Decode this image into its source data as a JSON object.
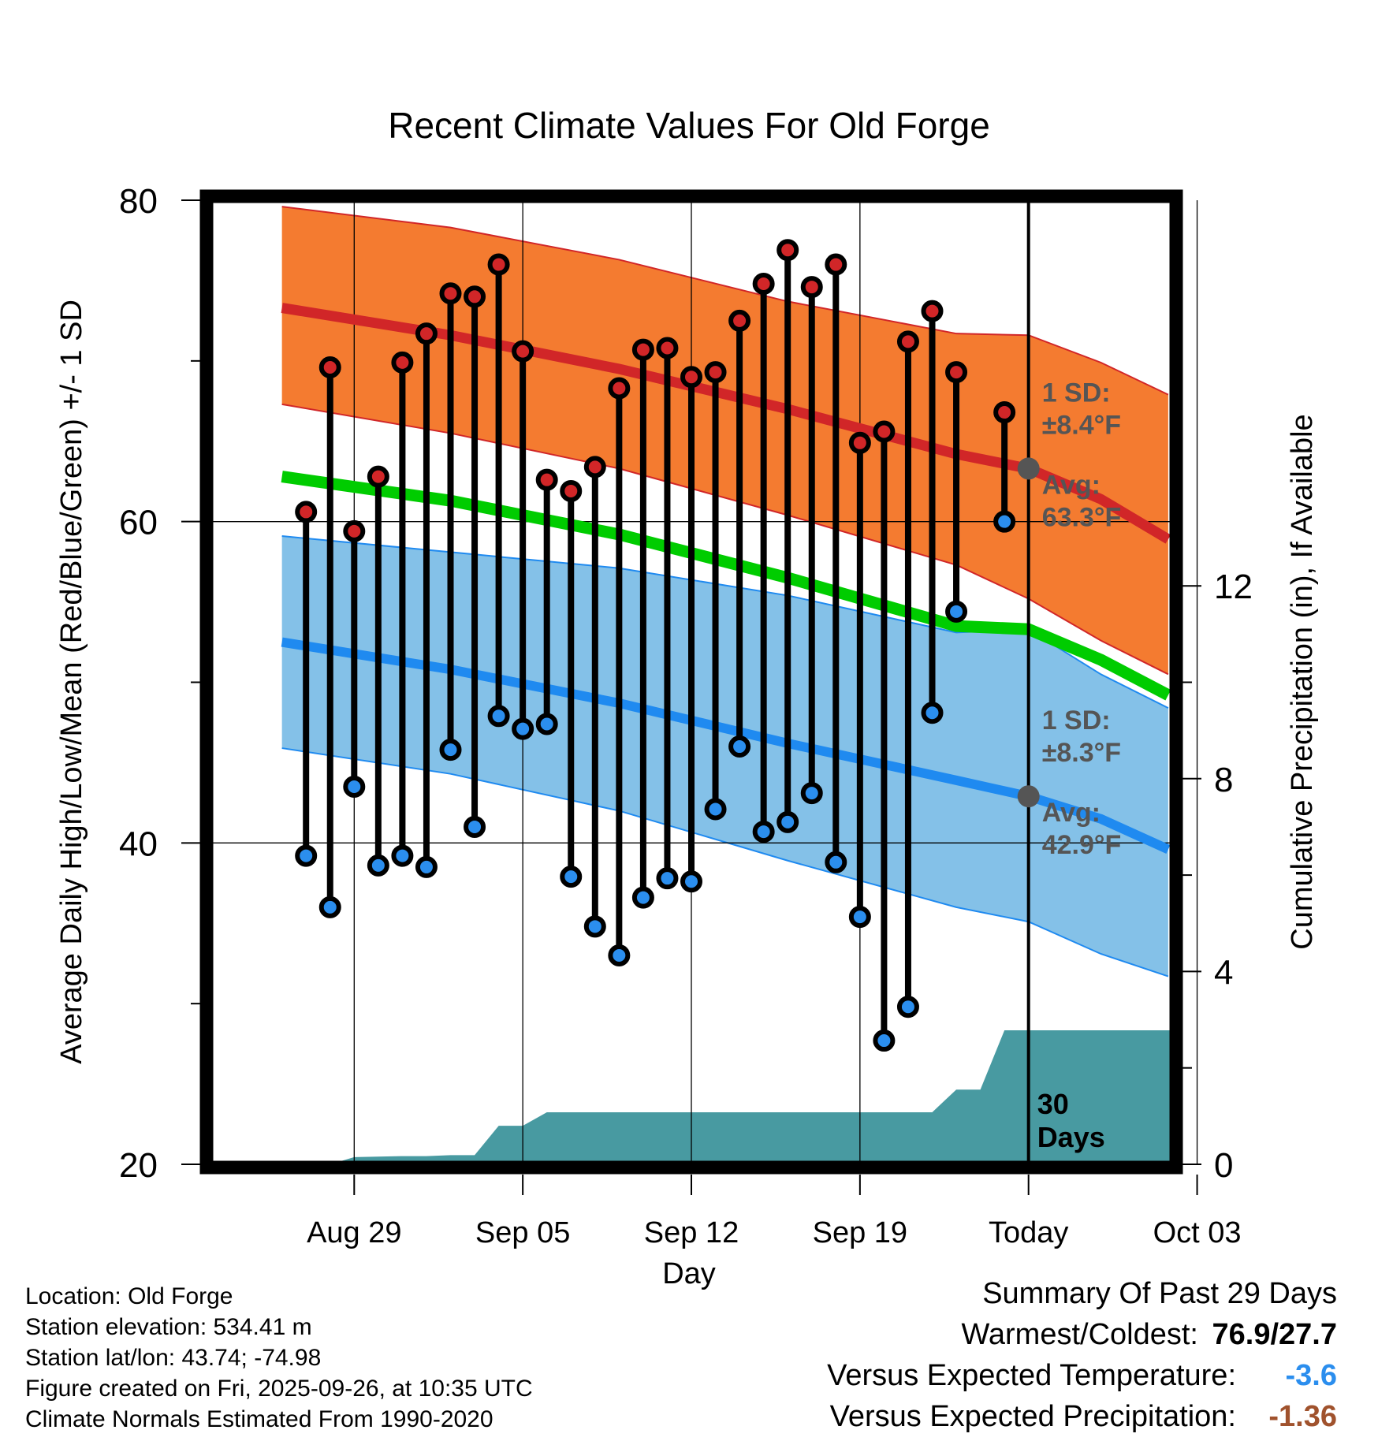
{
  "chart_data": {
    "type": "climate-range",
    "title": "Recent Climate Values For Old Forge",
    "xlabel": "Day",
    "ylabel": "Average Daily High/Low/Mean (Red/Blue/Green) +/- 1 SD",
    "ylabel_right": "Cumulative Precipitation (in), If Available",
    "ylim": [
      20,
      80
    ],
    "yticks": [
      "80",
      "60",
      "40",
      "20"
    ],
    "ylim_right": [
      0,
      20
    ],
    "yticks_right": [
      "12",
      "8",
      "4",
      "0"
    ],
    "xlim_days": [
      -34,
      6
    ],
    "xticks": [
      {
        "label": "Aug 29",
        "day": -28
      },
      {
        "label": "Sep 05",
        "day": -21
      },
      {
        "label": "Sep 12",
        "day": -14
      },
      {
        "label": "Sep 19",
        "day": -7
      },
      {
        "label": "Today",
        "day": 0
      },
      {
        "label": "Oct 03",
        "day": 7
      }
    ],
    "normals": {
      "days": [
        -31,
        -24,
        -17,
        -10,
        -3,
        0,
        3,
        5.8
      ],
      "high_mean": [
        73.3,
        71.6,
        69.5,
        67.0,
        64.2,
        63.3,
        61.4,
        58.9
      ],
      "high_upper": [
        79.6,
        78.3,
        76.3,
        73.7,
        71.7,
        71.6,
        69.9,
        67.9
      ],
      "high_lower": [
        67.3,
        65.5,
        63.3,
        60.4,
        57.3,
        55.2,
        52.6,
        50.5
      ],
      "mean": [
        62.8,
        61.3,
        59.2,
        56.5,
        53.5,
        53.3,
        51.4,
        49.2
      ],
      "low_mean": [
        52.5,
        50.8,
        48.7,
        46.2,
        43.9,
        42.9,
        41.5,
        39.6
      ],
      "low_upper": [
        59.1,
        58.1,
        57.1,
        55.4,
        53.1,
        53.3,
        50.5,
        48.4
      ],
      "low_lower": [
        45.9,
        44.3,
        42.0,
        38.9,
        36.0,
        35.1,
        33.1,
        31.7
      ]
    },
    "observations": [
      {
        "day": -30,
        "high": 60.6,
        "low": 39.2
      },
      {
        "day": -29,
        "high": 69.6,
        "low": 36.0
      },
      {
        "day": -28,
        "high": 59.4,
        "low": 43.5
      },
      {
        "day": -27,
        "high": 62.8,
        "low": 38.6
      },
      {
        "day": -26,
        "high": 69.9,
        "low": 39.2
      },
      {
        "day": -25,
        "high": 71.7,
        "low": 38.5
      },
      {
        "day": -24,
        "high": 74.2,
        "low": 45.8
      },
      {
        "day": -23,
        "high": 74.0,
        "low": 41.0
      },
      {
        "day": -22,
        "high": 76.0,
        "low": 47.9
      },
      {
        "day": -21,
        "high": 70.6,
        "low": 47.1
      },
      {
        "day": -20,
        "high": 62.6,
        "low": 47.4
      },
      {
        "day": -19,
        "high": 61.9,
        "low": 37.9
      },
      {
        "day": -18,
        "high": 63.4,
        "low": 34.8
      },
      {
        "day": -17,
        "high": 68.3,
        "low": 33.0
      },
      {
        "day": -16,
        "high": 70.7,
        "low": 36.6
      },
      {
        "day": -15,
        "high": 70.8,
        "low": 37.8
      },
      {
        "day": -14,
        "high": 69.0,
        "low": 37.6
      },
      {
        "day": -13,
        "high": 69.3,
        "low": 42.1
      },
      {
        "day": -12,
        "high": 72.5,
        "low": 46.0
      },
      {
        "day": -11,
        "high": 74.8,
        "low": 40.7
      },
      {
        "day": -10,
        "high": 76.9,
        "low": 41.3
      },
      {
        "day": -9,
        "high": 74.6,
        "low": 43.1
      },
      {
        "day": -8,
        "high": 76.0,
        "low": 38.8
      },
      {
        "day": -7,
        "high": 64.9,
        "low": 35.4
      },
      {
        "day": -6,
        "high": 65.6,
        "low": 27.7
      },
      {
        "day": -5,
        "high": 71.2,
        "low": 29.8
      },
      {
        "day": -4,
        "high": 73.1,
        "low": 48.1
      },
      {
        "day": -3,
        "high": 69.3,
        "low": 54.4
      },
      {
        "day": -1,
        "high": 66.8,
        "low": 60.0
      }
    ],
    "precipitation": {
      "days": [
        -31,
        -29,
        -28,
        -26,
        -25,
        -24,
        -23,
        -22,
        -21,
        -20,
        -19,
        -18,
        -17,
        -16,
        -15,
        -14,
        -13,
        -12,
        -11,
        -10,
        -9,
        -8,
        -7,
        -6,
        -5,
        -4,
        -3,
        -2,
        -1,
        0,
        6
      ],
      "cumulative_in": [
        0,
        0,
        0.15,
        0.17,
        0.17,
        0.19,
        0.19,
        0.8,
        0.8,
        1.08,
        1.08,
        1.08,
        1.08,
        1.08,
        1.08,
        1.08,
        1.08,
        1.08,
        1.08,
        1.08,
        1.08,
        1.08,
        1.08,
        1.08,
        1.08,
        1.08,
        1.55,
        1.55,
        2.78,
        2.78,
        2.78
      ]
    },
    "high_annotation": {
      "sd_label": "1 SD:",
      "sd_value": "±8.4°F",
      "avg_label": "Avg:",
      "avg_value": "63.3°F",
      "avg": 63.3
    },
    "low_annotation": {
      "sd_label": "1 SD:",
      "sd_value": "±8.3°F",
      "avg_label": "Avg:",
      "avg_value": "42.9°F",
      "avg": 42.9
    },
    "window_label_1": "30",
    "window_label_2": "Days"
  },
  "colors": {
    "high_band": "#f47b30",
    "high_line": "#d12628",
    "low_band": "#84c1e8",
    "low_line": "#1f8af0",
    "mean_line": "#00cc00",
    "precip": "#489aa1",
    "annotation": "#555555",
    "temp_anomaly": "#2b8eee",
    "precip_anomaly": "#a0522d"
  },
  "info": {
    "location": "Location: Old Forge",
    "elevation": "Station elevation: 534.41 m",
    "latlon": "Station lat/lon: 43.74; -74.98",
    "created": "Figure created on Fri, 2025-09-26, at 10:35 UTC",
    "normals": "Climate Normals Estimated From 1990-2020"
  },
  "summary": {
    "title": "Summary Of Past 29 Days",
    "warm_cold_label": "Warmest/Coldest:",
    "warm_cold_value": "76.9/27.7",
    "temp_label": "Versus Expected Temperature:",
    "temp_value": "-3.6",
    "precip_label": "Versus Expected Precipitation:",
    "precip_value": "-1.36"
  }
}
